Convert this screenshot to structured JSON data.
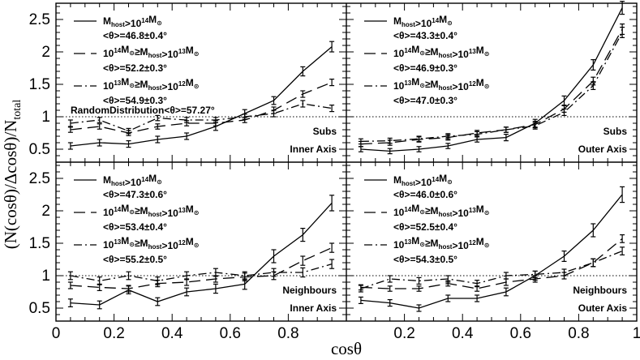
{
  "figure": {
    "xlabel": "cosθ",
    "ylabel": "(N(cosθ)/Δcosθ)/N",
    "ylabel_sub": "total",
    "x_ticks": [
      "0",
      "0.2",
      "0.4",
      "0.6",
      "0.8",
      "1"
    ],
    "y_ticks": [
      "0.5",
      "1",
      "1.5",
      "2",
      "2.5"
    ]
  },
  "chart_data": [
    {
      "type": "line",
      "panel": "top-left",
      "xlim": [
        0,
        1
      ],
      "ylim": [
        0.3,
        2.75
      ],
      "x": [
        0.05,
        0.15,
        0.25,
        0.35,
        0.45,
        0.55,
        0.65,
        0.75,
        0.85,
        0.95
      ],
      "annotations": [
        "Subs",
        "Inner Axis"
      ],
      "random_line": {
        "y": 1,
        "label": "RandomDistribution<θ>=57.27°"
      },
      "series": [
        {
          "style": "solid",
          "label": "<θ>=46.8±0.4°",
          "values": [
            0.55,
            0.6,
            0.58,
            0.65,
            0.7,
            0.85,
            1.05,
            1.25,
            1.7,
            2.08
          ],
          "errors": [
            0.05,
            0.05,
            0.05,
            0.05,
            0.05,
            0.06,
            0.06,
            0.06,
            0.07,
            0.08
          ]
        },
        {
          "style": "dashed",
          "label": "<θ>=52.2±0.3°",
          "values": [
            0.8,
            0.85,
            0.75,
            0.85,
            0.9,
            0.9,
            0.95,
            1.1,
            1.35,
            1.53
          ],
          "errors": [
            0.04,
            0.04,
            0.04,
            0.04,
            0.04,
            0.04,
            0.04,
            0.05,
            0.05,
            0.05
          ]
        },
        {
          "style": "dashdot",
          "label": "<θ>=54.9±0.3°",
          "values": [
            0.9,
            0.95,
            0.78,
            0.98,
            0.95,
            0.95,
            1.0,
            1.05,
            1.2,
            1.13
          ],
          "errors": [
            0.05,
            0.04,
            0.04,
            0.04,
            0.04,
            0.04,
            0.04,
            0.05,
            0.05,
            0.05
          ]
        }
      ]
    },
    {
      "type": "line",
      "panel": "top-right",
      "xlim": [
        0,
        1
      ],
      "ylim": [
        0.3,
        2.75
      ],
      "x": [
        0.05,
        0.15,
        0.25,
        0.35,
        0.45,
        0.55,
        0.65,
        0.75,
        0.85,
        0.95
      ],
      "annotations": [
        "Subs",
        "Outer Axis"
      ],
      "series": [
        {
          "style": "solid",
          "label": "<θ>=43.3±0.4°",
          "values": [
            0.5,
            0.47,
            0.5,
            0.55,
            0.65,
            0.68,
            0.9,
            1.25,
            1.8,
            2.68
          ],
          "errors": [
            0.04,
            0.04,
            0.04,
            0.04,
            0.04,
            0.05,
            0.06,
            0.07,
            0.08,
            0.1
          ]
        },
        {
          "style": "dashed",
          "label": "<θ>=46.9±0.3°",
          "values": [
            0.58,
            0.6,
            0.65,
            0.68,
            0.75,
            0.8,
            0.88,
            1.12,
            1.55,
            2.35
          ],
          "errors": [
            0.04,
            0.04,
            0.04,
            0.04,
            0.04,
            0.04,
            0.05,
            0.05,
            0.06,
            0.08
          ]
        },
        {
          "style": "dashdot",
          "label": "<θ>=47.0±0.3°",
          "values": [
            0.62,
            0.63,
            0.66,
            0.7,
            0.73,
            0.8,
            0.86,
            1.07,
            1.48,
            2.3
          ],
          "errors": [
            0.04,
            0.04,
            0.04,
            0.04,
            0.04,
            0.04,
            0.05,
            0.05,
            0.06,
            0.08
          ]
        }
      ]
    },
    {
      "type": "line",
      "panel": "bottom-left",
      "xlim": [
        0,
        1
      ],
      "ylim": [
        0.3,
        2.75
      ],
      "x": [
        0.05,
        0.15,
        0.25,
        0.35,
        0.45,
        0.55,
        0.65,
        0.75,
        0.85,
        0.95
      ],
      "annotations": [
        "Neighbours",
        "Inner Axis"
      ],
      "series": [
        {
          "style": "solid",
          "label": "<θ>=47.3±0.6°",
          "values": [
            0.58,
            0.55,
            0.78,
            0.6,
            0.75,
            0.8,
            0.87,
            1.3,
            1.63,
            2.12
          ],
          "errors": [
            0.06,
            0.06,
            0.06,
            0.06,
            0.06,
            0.07,
            0.08,
            0.1,
            0.1,
            0.12
          ]
        },
        {
          "style": "dashed",
          "label": "<θ>=53.4±0.4°",
          "values": [
            0.85,
            0.82,
            0.8,
            0.88,
            0.9,
            0.95,
            0.98,
            1.0,
            1.23,
            1.43
          ],
          "errors": [
            0.05,
            0.05,
            0.05,
            0.05,
            0.05,
            0.05,
            0.06,
            0.06,
            0.07,
            0.07
          ]
        },
        {
          "style": "dashdot",
          "label": "<θ>=55.2±0.5°",
          "values": [
            1.0,
            0.92,
            1.0,
            0.92,
            1.0,
            1.05,
            1.0,
            1.05,
            1.05,
            1.18
          ],
          "errors": [
            0.06,
            0.06,
            0.06,
            0.06,
            0.06,
            0.06,
            0.06,
            0.06,
            0.07,
            0.07
          ]
        }
      ]
    },
    {
      "type": "line",
      "panel": "bottom-right",
      "xlim": [
        0,
        1
      ],
      "ylim": [
        0.3,
        2.75
      ],
      "x": [
        0.05,
        0.15,
        0.25,
        0.35,
        0.45,
        0.55,
        0.65,
        0.75,
        0.85,
        0.95
      ],
      "annotations": [
        "Neighbours",
        "Outer Axis"
      ],
      "series": [
        {
          "style": "solid",
          "label": "<θ>=46.0±0.6°",
          "values": [
            0.62,
            0.58,
            0.5,
            0.65,
            0.65,
            0.75,
            1.0,
            1.3,
            1.7,
            2.25
          ],
          "errors": [
            0.05,
            0.05,
            0.05,
            0.05,
            0.05,
            0.06,
            0.07,
            0.08,
            0.1,
            0.12
          ]
        },
        {
          "style": "dashed",
          "label": "<θ>=52.5±0.4°",
          "values": [
            0.82,
            0.8,
            0.8,
            0.88,
            0.8,
            0.9,
            0.95,
            1.0,
            1.2,
            1.57
          ],
          "errors": [
            0.04,
            0.04,
            0.04,
            0.04,
            0.04,
            0.05,
            0.05,
            0.05,
            0.06,
            0.06
          ]
        },
        {
          "style": "dashdot",
          "label": "<θ>=54.3±0.5°",
          "values": [
            0.8,
            0.95,
            0.92,
            0.95,
            0.88,
            1.0,
            1.02,
            1.05,
            1.2,
            1.38
          ],
          "errors": [
            0.05,
            0.05,
            0.05,
            0.05,
            0.05,
            0.05,
            0.05,
            0.05,
            0.06,
            0.06
          ]
        }
      ]
    }
  ]
}
